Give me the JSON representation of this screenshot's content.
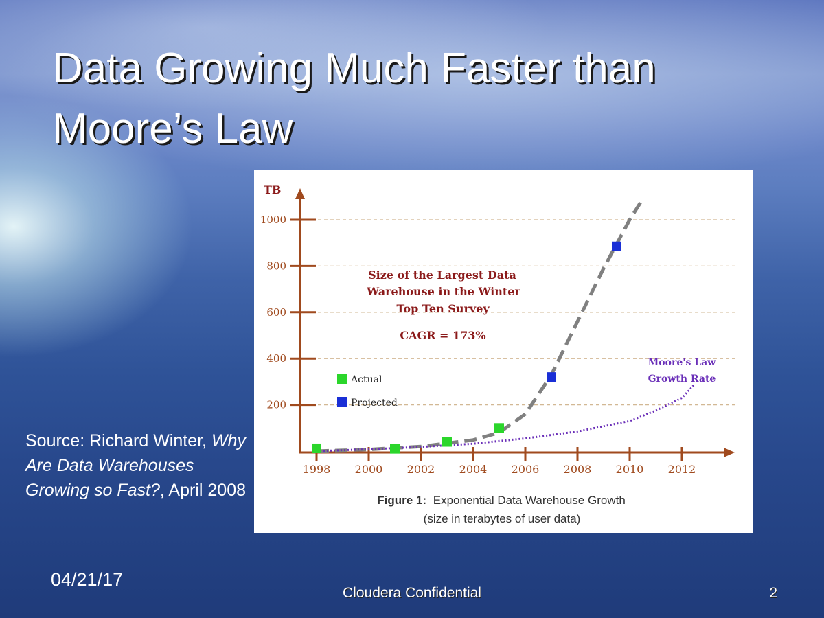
{
  "slide": {
    "title_line1": "Data Growing Much Faster than",
    "title_line2": "Moore’s Law",
    "source_prefix": "Source: Richard Winter,",
    "source_work": "Why Are Data Warehouses Growing so Fast?",
    "source_suffix": ", April 2008",
    "date": "04/21/17",
    "footer": "Cloudera Confidential",
    "page_number": "2"
  },
  "colors": {
    "axis": "#a04a1e",
    "grid": "#d2b894",
    "actual": "#2bd62b",
    "projected": "#1a2fd6",
    "trend": "#808080",
    "moores_law": "#6a2fb8",
    "title_text": "#8b1a1a"
  },
  "chart_data": {
    "type": "line",
    "y_axis_label": "TB",
    "ylim": [
      0,
      1000
    ],
    "y_ticks": [
      "200",
      "400",
      "600",
      "800",
      "1000"
    ],
    "xlim": [
      1998,
      2012
    ],
    "x_ticks": [
      "1998",
      "2000",
      "2002",
      "2004",
      "2006",
      "2008",
      "2010",
      "2012"
    ],
    "grid": true,
    "title_lines": [
      "Size of the Largest Data",
      "Warehouse in the Winter",
      "Top Ten Survey"
    ],
    "annotation": "CAGR = 173%",
    "moores_law_label": [
      "Moore's Law",
      "Growth Rate"
    ],
    "legend": {
      "placement": "left-middle",
      "entries": [
        {
          "label": "Actual",
          "color": "#2bd62b"
        },
        {
          "label": "Projected",
          "color": "#1a2fd6"
        }
      ]
    },
    "series": [
      {
        "name": "Actual",
        "style": "markers",
        "points": [
          [
            1998,
            12
          ],
          [
            2001,
            10
          ],
          [
            2003,
            40
          ],
          [
            2005,
            100
          ]
        ]
      },
      {
        "name": "Projected",
        "style": "markers",
        "points": [
          [
            2007,
            320
          ],
          [
            2009.5,
            885
          ]
        ]
      },
      {
        "name": "trend",
        "style": "dashed",
        "points": [
          [
            1998,
            0
          ],
          [
            2000,
            7
          ],
          [
            2002,
            20
          ],
          [
            2004,
            48
          ],
          [
            2005,
            80
          ],
          [
            2006,
            160
          ],
          [
            2007,
            330
          ],
          [
            2008,
            560
          ],
          [
            2009,
            790
          ],
          [
            2010,
            1000
          ],
          [
            2010.5,
            1090
          ]
        ]
      },
      {
        "name": "moores_law",
        "style": "dotted",
        "points": [
          [
            1998,
            0
          ],
          [
            2000,
            8
          ],
          [
            2002,
            18
          ],
          [
            2004,
            32
          ],
          [
            2006,
            55
          ],
          [
            2008,
            85
          ],
          [
            2010,
            130
          ],
          [
            2011,
            175
          ],
          [
            2012,
            230
          ],
          [
            2012.5,
            290
          ]
        ]
      }
    ],
    "caption_bold": "Figure 1:",
    "caption_rest": "Exponential Data Warehouse Growth",
    "caption_line2": "(size in terabytes of user data)"
  }
}
